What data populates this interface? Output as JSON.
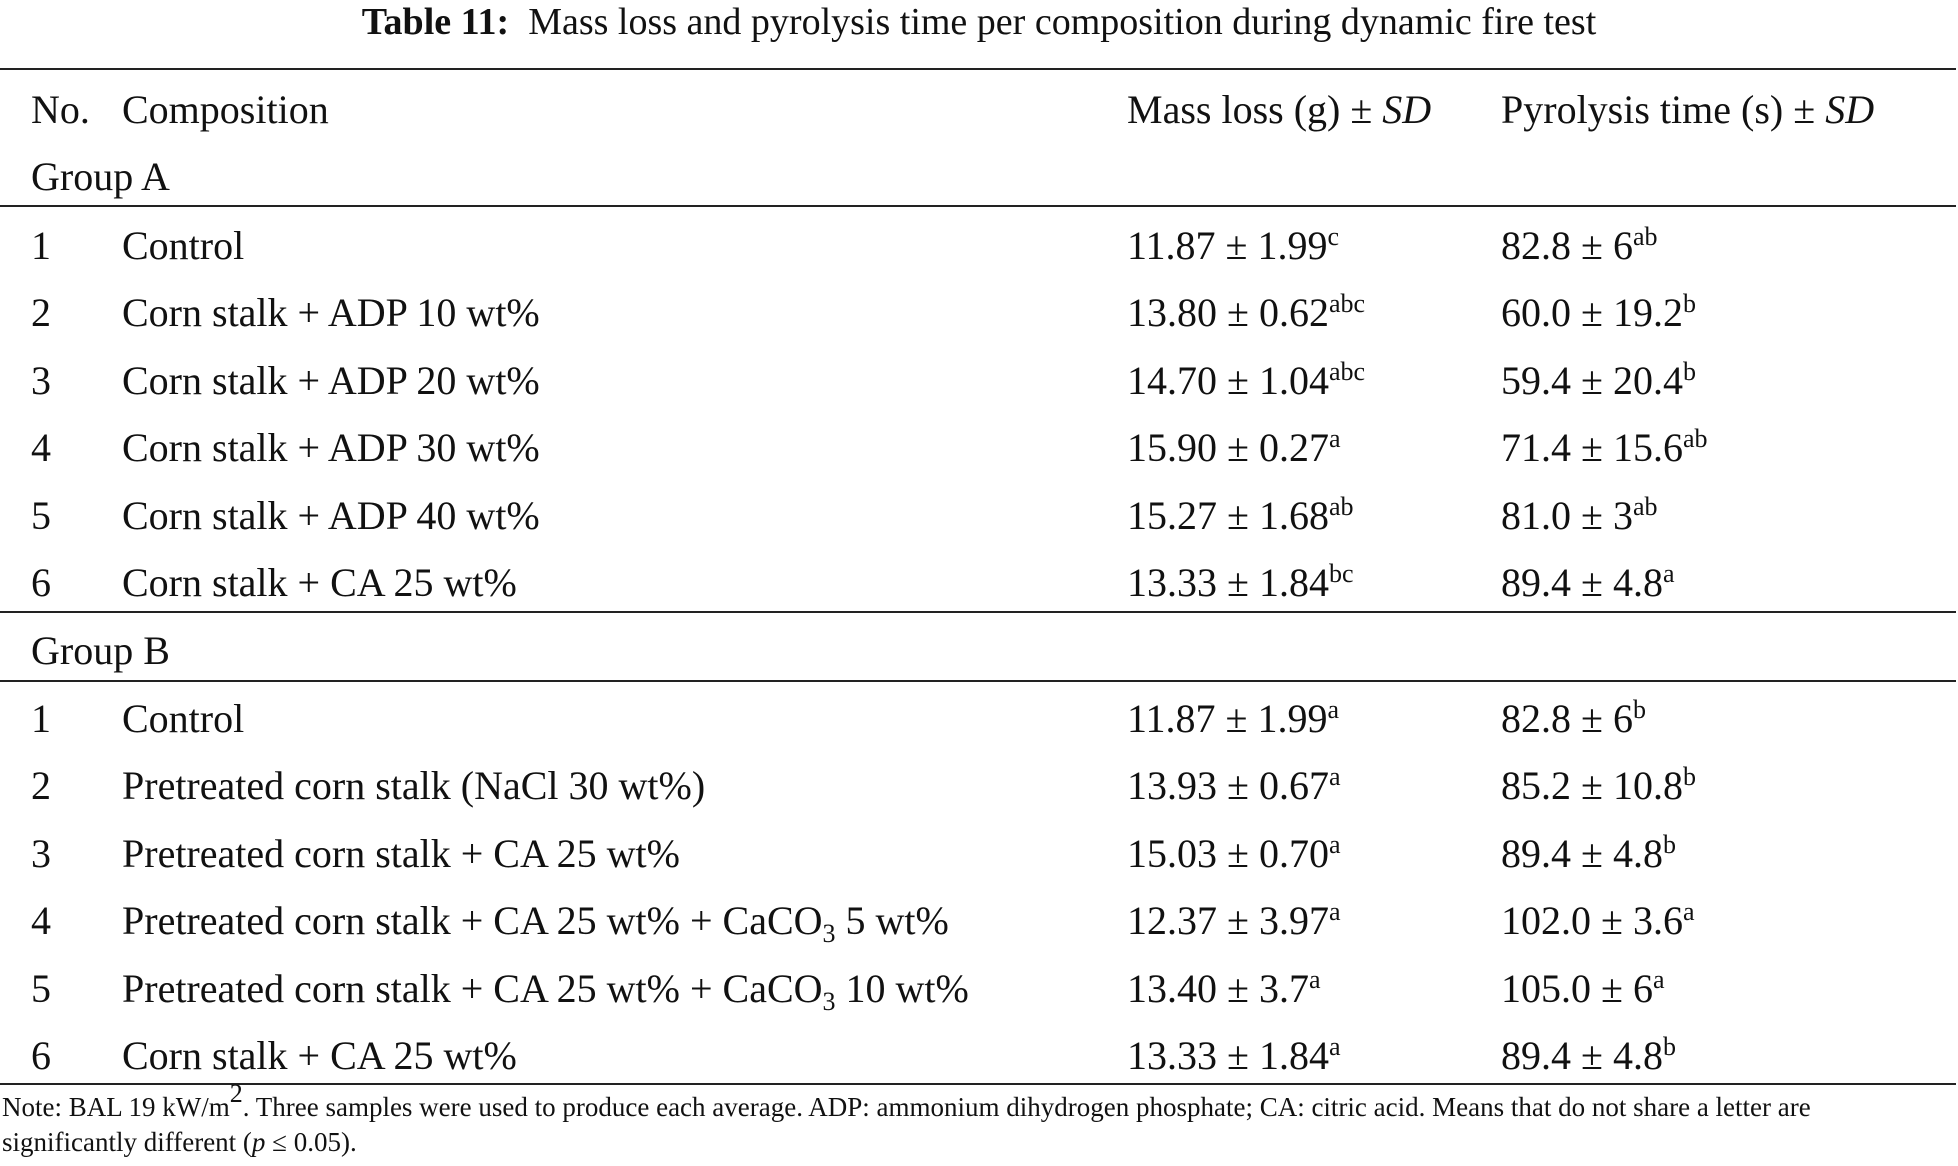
{
  "caption": {
    "label": "Table 11:",
    "text": "Mass loss and pyrolysis time per composition during dynamic fire test"
  },
  "table": {
    "header": {
      "no": "No.",
      "composition": "Composition",
      "mass_loss": "Mass loss (g) ± ",
      "pyrolysis": "Pyrolysis time (s) ± ",
      "sd": "SD"
    },
    "groups": [
      {
        "label": "Group A",
        "rows": [
          {
            "no": "1",
            "composition": "Control",
            "mass_loss": "11.87 ± 1.99",
            "mass_loss_sup": "c",
            "pyrolysis": "82.8 ± 6",
            "pyrolysis_sup": "ab"
          },
          {
            "no": "2",
            "composition": "Corn stalk + ADP 10 wt%",
            "mass_loss": "13.80 ± 0.62",
            "mass_loss_sup": "abc",
            "pyrolysis": "60.0 ± 19.2",
            "pyrolysis_sup": "b"
          },
          {
            "no": "3",
            "composition": "Corn stalk + ADP 20 wt%",
            "mass_loss": "14.70 ± 1.04",
            "mass_loss_sup": "abc",
            "pyrolysis": "59.4 ± 20.4",
            "pyrolysis_sup": "b"
          },
          {
            "no": "4",
            "composition": "Corn stalk + ADP 30 wt%",
            "mass_loss": "15.90 ± 0.27",
            "mass_loss_sup": "a",
            "pyrolysis": "71.4 ± 15.6",
            "pyrolysis_sup": "ab"
          },
          {
            "no": "5",
            "composition": "Corn stalk + ADP 40 wt%",
            "mass_loss": "15.27 ± 1.68",
            "mass_loss_sup": "ab",
            "pyrolysis": "81.0 ± 3",
            "pyrolysis_sup": "ab"
          },
          {
            "no": "6",
            "composition": "Corn stalk + CA 25 wt%",
            "mass_loss": "13.33 ± 1.84",
            "mass_loss_sup": "bc",
            "pyrolysis": "89.4 ± 4.8",
            "pyrolysis_sup": "a"
          }
        ]
      },
      {
        "label": "Group B",
        "rows": [
          {
            "no": "1",
            "composition": "Control",
            "mass_loss": "11.87 ± 1.99",
            "mass_loss_sup": "a",
            "pyrolysis": "82.8 ± 6",
            "pyrolysis_sup": "b"
          },
          {
            "no": "2",
            "composition": "Pretreated corn stalk (NaCl 30 wt%)",
            "mass_loss": "13.93 ± 0.67",
            "mass_loss_sup": "a",
            "pyrolysis": "85.2 ± 10.8",
            "pyrolysis_sup": "b"
          },
          {
            "no": "3",
            "composition": "Pretreated corn stalk + CA 25 wt%",
            "mass_loss": "15.03 ± 0.70",
            "mass_loss_sup": "a",
            "pyrolysis": "89.4 ± 4.8",
            "pyrolysis_sup": "b"
          },
          {
            "no": "4",
            "composition": "Pretreated corn stalk + CA 25 wt% + CaCO",
            "composition_sub": "3",
            "composition_after": " 5 wt%",
            "mass_loss": "12.37 ± 3.97",
            "mass_loss_sup": "a",
            "pyrolysis": "102.0 ± 3.6",
            "pyrolysis_sup": "a"
          },
          {
            "no": "5",
            "composition": "Pretreated corn stalk + CA 25 wt% + CaCO",
            "composition_sub": "3",
            "composition_after": " 10 wt%",
            "mass_loss": "13.40 ± 3.7",
            "mass_loss_sup": "a",
            "pyrolysis": "105.0 ± 6",
            "pyrolysis_sup": "a"
          },
          {
            "no": "6",
            "composition": "Corn stalk + CA 25 wt%",
            "mass_loss": "13.33 ± 1.84",
            "mass_loss_sup": "a",
            "pyrolysis": "89.4 ± 4.8",
            "pyrolysis_sup": "b"
          }
        ]
      }
    ]
  },
  "note": [
    {
      "style": "plain",
      "text": "Note: BAL 19 kW/m"
    },
    {
      "style": "sup",
      "text": "2"
    },
    {
      "style": "plain",
      "text": ". Three samples were used to produce each average. ADP: ammonium dihydrogen phosphate; CA: citric acid. Means that do not share a letter are significantly different ("
    },
    {
      "style": "italic",
      "text": "p"
    },
    {
      "style": "plain",
      "text": " ≤ 0.05)."
    }
  ]
}
